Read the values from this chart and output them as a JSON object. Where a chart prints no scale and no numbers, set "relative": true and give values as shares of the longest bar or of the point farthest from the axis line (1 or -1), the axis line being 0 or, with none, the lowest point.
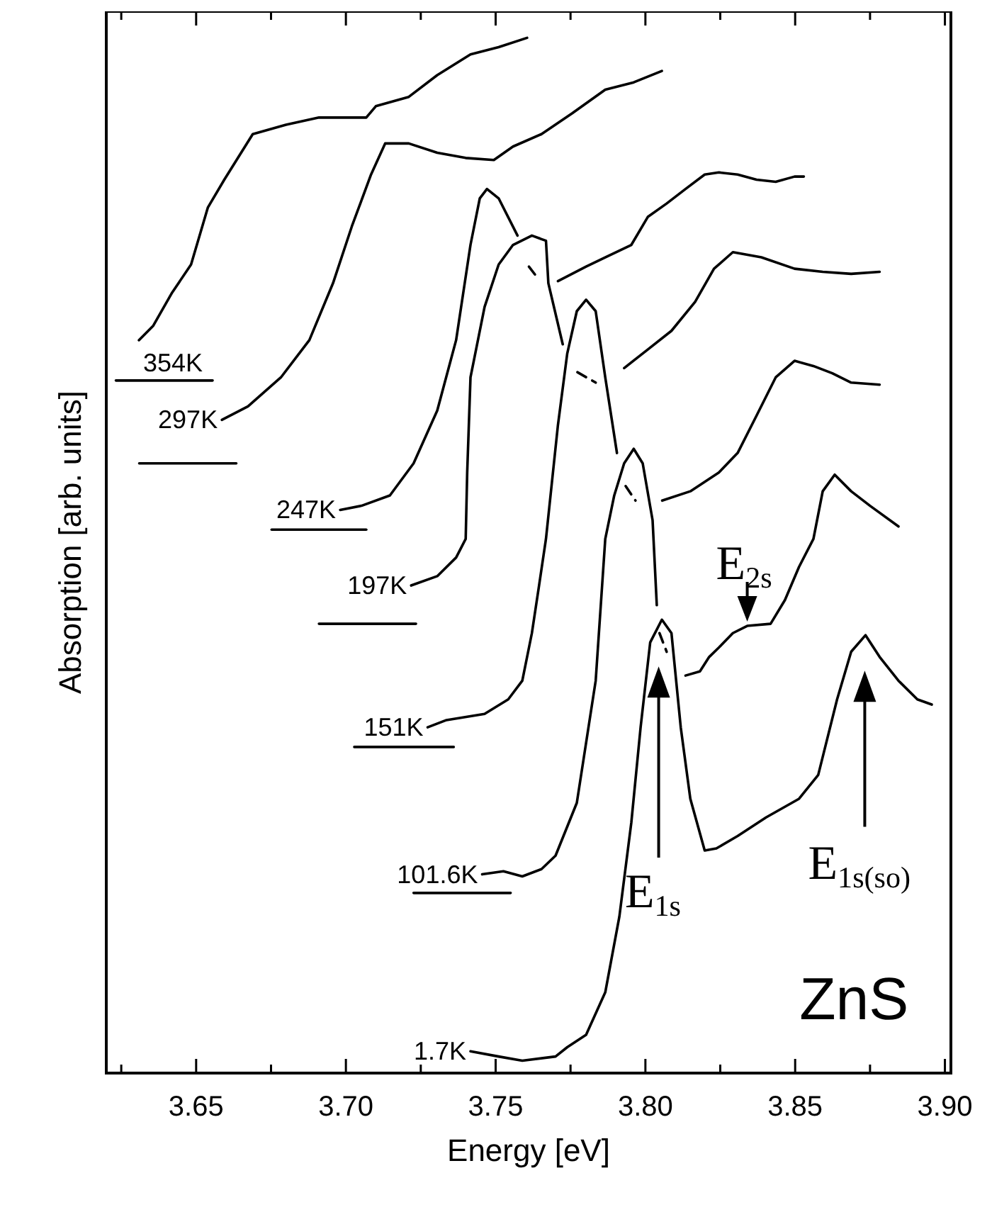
{
  "chart_data": {
    "type": "line",
    "relative": true,
    "xlabel": "Energy [eV]",
    "ylabel": "Absorption [arb. units]",
    "xlim": [
      3.62,
      3.902
    ],
    "xticks": [
      {
        "value": 3.625,
        "label": null
      },
      {
        "value": 3.65,
        "label": "3.65"
      },
      {
        "value": 3.675,
        "label": null
      },
      {
        "value": 3.7,
        "label": "3.70"
      },
      {
        "value": 3.725,
        "label": null
      },
      {
        "value": 3.75,
        "label": "3.75"
      },
      {
        "value": 3.775,
        "label": null
      },
      {
        "value": 3.8,
        "label": "3.80"
      },
      {
        "value": 3.825,
        "label": null
      },
      {
        "value": 3.85,
        "label": "3.85"
      },
      {
        "value": 3.875,
        "label": null
      },
      {
        "value": 3.9,
        "label": "3.90"
      }
    ],
    "series": [
      {
        "name": "354K",
        "color": "#000000",
        "x": [
          3.6309,
          3.6357,
          3.642,
          3.6483,
          3.6539,
          3.6594,
          3.6689,
          3.68,
          3.691,
          3.7068,
          3.71,
          3.721,
          3.7305,
          3.7416,
          3.751,
          3.7605
        ],
        "values": [
          0.708,
          0.722,
          0.754,
          0.781,
          0.836,
          0.863,
          0.907,
          0.916,
          0.923,
          0.923,
          0.934,
          0.943,
          0.964,
          0.984,
          0.991,
          1.0
        ]
      },
      {
        "name": "297K",
        "color": "#000000",
        "x": [
          3.6586,
          3.6673,
          3.6783,
          3.6878,
          3.6957,
          3.702,
          3.7084,
          3.7131,
          3.721,
          3.7305,
          3.74,
          3.7494,
          3.7558,
          3.7653,
          3.7755,
          3.7866,
          3.7961,
          3.8055
        ],
        "values": [
          0.631,
          0.644,
          0.672,
          0.708,
          0.763,
          0.818,
          0.868,
          0.898,
          0.898,
          0.889,
          0.884,
          0.882,
          0.895,
          0.907,
          0.927,
          0.95,
          0.957,
          0.968
        ]
      },
      {
        "name": "247K",
        "color": "#000000",
        "x": [
          3.6981,
          3.7052,
          3.7147,
          3.7226,
          3.7305,
          3.7368,
          3.7416,
          3.7447,
          3.7471,
          3.751,
          3.7573
        ],
        "values": [
          0.544,
          0.548,
          0.558,
          0.589,
          0.64,
          0.708,
          0.8,
          0.845,
          0.854,
          0.845,
          0.809
        ]
      },
      {
        "color": "#000000",
        "line_style": "dashed",
        "x": [
          3.7611,
          3.7635
        ],
        "values": [
          0.779,
          0.77
        ]
      },
      {
        "color": "#000000",
        "x": [
          3.7708,
          3.7802,
          3.7866,
          3.7953,
          3.8008,
          3.8071,
          3.8134,
          3.8198,
          3.8245,
          3.8308,
          3.8371,
          3.8435,
          3.8498,
          3.8529
        ],
        "values": [
          0.765,
          0.779,
          0.788,
          0.8,
          0.827,
          0.84,
          0.854,
          0.868,
          0.87,
          0.868,
          0.863,
          0.861,
          0.866,
          0.866
        ]
      },
      {
        "name": "197K",
        "color": "#000000",
        "x": [
          3.7218,
          3.7305,
          3.7368,
          3.74,
          3.7405,
          3.7416,
          3.7463,
          3.751,
          3.7558,
          3.7621,
          3.7668,
          3.7676,
          3.7724
        ],
        "values": [
          0.471,
          0.48,
          0.498,
          0.516,
          0.58,
          0.672,
          0.74,
          0.781,
          0.8,
          0.809,
          0.804,
          0.763,
          0.704
        ]
      },
      {
        "color": "#000000",
        "line_style": "dashed",
        "x": [
          3.7773,
          3.7834
        ],
        "values": [
          0.677,
          0.667
        ]
      },
      {
        "color": "#000000",
        "x": [
          3.7929,
          3.8008,
          3.8087,
          3.8166,
          3.8229,
          3.8292,
          3.8387,
          3.8498,
          3.8592,
          3.8687,
          3.8782
        ],
        "values": [
          0.681,
          0.699,
          0.717,
          0.745,
          0.777,
          0.793,
          0.788,
          0.777,
          0.774,
          0.772,
          0.774
        ]
      },
      {
        "name": "151K",
        "color": "#000000",
        "x": [
          3.7273,
          3.7336,
          3.7463,
          3.7542,
          3.7589,
          3.7621,
          3.7645,
          3.7668,
          3.7708,
          3.7739,
          3.7771,
          3.7802,
          3.7834,
          3.7866,
          3.7905
        ],
        "values": [
          0.334,
          0.341,
          0.347,
          0.361,
          0.379,
          0.425,
          0.471,
          0.516,
          0.626,
          0.695,
          0.736,
          0.747,
          0.736,
          0.672,
          0.599
        ]
      },
      {
        "color": "#000000",
        "line_style": "dashed",
        "x": [
          3.7934,
          3.7967
        ],
        "values": [
          0.567,
          0.553
        ]
      },
      {
        "color": "#000000",
        "x": [
          3.8056,
          3.815,
          3.8245,
          3.8308,
          3.8371,
          3.8435,
          3.8498,
          3.8561,
          3.8624,
          3.8687,
          3.8782
        ],
        "values": [
          0.553,
          0.562,
          0.58,
          0.599,
          0.635,
          0.672,
          0.688,
          0.683,
          0.676,
          0.667,
          0.665
        ]
      },
      {
        "name": "101.6K",
        "color": "#000000",
        "x": [
          3.7455,
          3.7526,
          3.7589,
          3.7653,
          3.77,
          3.7771,
          3.7834,
          3.7866,
          3.7896,
          3.7929,
          3.7961,
          3.7991,
          3.8024,
          3.8038
        ],
        "values": [
          0.192,
          0.195,
          0.19,
          0.197,
          0.21,
          0.261,
          0.379,
          0.516,
          0.558,
          0.589,
          0.603,
          0.589,
          0.534,
          0.452
        ]
      },
      {
        "color": "#000000",
        "line_style": "dashed",
        "x": [
          3.8047,
          3.8071
        ],
        "values": [
          0.425,
          0.407
        ]
      },
      {
        "color": "#000000",
        "x": [
          3.8134,
          3.8182,
          3.8213,
          3.8245,
          3.8292,
          3.834,
          3.8418,
          3.8466,
          3.8513,
          3.8561,
          3.8592,
          3.8632,
          3.8687,
          3.875,
          3.8845
        ],
        "values": [
          0.384,
          0.388,
          0.402,
          0.411,
          0.425,
          0.432,
          0.434,
          0.457,
          0.489,
          0.516,
          0.562,
          0.578,
          0.562,
          0.548,
          0.528
        ]
      },
      {
        "name": "1.7K",
        "color": "#000000",
        "x": [
          3.7416,
          3.751,
          3.7589,
          3.77,
          3.7739,
          3.7802,
          3.7866,
          3.7913,
          3.7953,
          3.7984,
          3.8016,
          3.8055,
          3.8087,
          3.8118,
          3.815,
          3.8198,
          3.8237,
          3.8308,
          3.8403,
          3.8513,
          3.8577,
          3.864,
          3.8687,
          3.8735,
          3.8782,
          3.8845,
          3.8908,
          3.8956
        ],
        "values": [
          0.021,
          0.016,
          0.012,
          0.016,
          0.025,
          0.037,
          0.078,
          0.151,
          0.242,
          0.334,
          0.416,
          0.438,
          0.425,
          0.334,
          0.265,
          0.215,
          0.217,
          0.229,
          0.247,
          0.265,
          0.288,
          0.361,
          0.407,
          0.423,
          0.402,
          0.379,
          0.361,
          0.356
        ]
      },
      {
        "color": "#000000",
        "x": [
          3.6232,
          3.6555
        ],
        "values": [
          0.669,
          0.669
        ]
      },
      {
        "color": "#000000",
        "x": [
          3.631,
          3.6634
        ],
        "values": [
          0.589,
          0.589
        ]
      },
      {
        "color": "#000000",
        "x": [
          3.6752,
          3.7068
        ],
        "values": [
          0.525,
          0.525
        ]
      },
      {
        "color": "#000000",
        "x": [
          3.691,
          3.7234
        ],
        "values": [
          0.434,
          0.434
        ]
      },
      {
        "color": "#000000",
        "x": [
          3.7028,
          3.736
        ],
        "values": [
          0.315,
          0.315
        ]
      },
      {
        "color": "#000000",
        "x": [
          3.7226,
          3.755
        ],
        "values": [
          0.174,
          0.174
        ]
      }
    ],
    "annotations": [
      {
        "text": "E$_{2s}$",
        "x": 3.834,
        "y": 0.432
      },
      "E$_{1s}$",
      "E$_{1s(so)}$",
      "ZnS"
    ]
  }
}
